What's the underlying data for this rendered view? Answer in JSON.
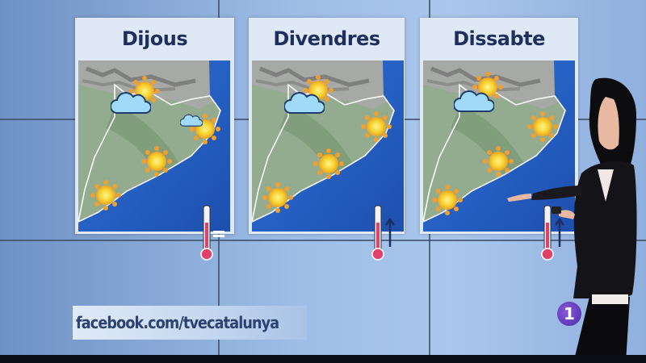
{
  "forecast": {
    "days": [
      {
        "label": "Dijous",
        "temperature_trend": "stable"
      },
      {
        "label": "Divendres",
        "temperature_trend": "rising"
      },
      {
        "label": "Dissabte",
        "temperature_trend": "rising"
      }
    ],
    "icons": [
      "sun-icon",
      "cloud-icon",
      "thermometer-icon",
      "arrow-up-icon",
      "equals-icon"
    ]
  },
  "banner": {
    "text": "facebook.com/tvecatalunya"
  },
  "channel_logo": {
    "text": "1"
  },
  "colors": {
    "sea": "#2a5fc4",
    "land": "#8fa88a",
    "sun": "#f5d230",
    "thermometer": "#e0406a",
    "title": "#1d2f5e"
  }
}
